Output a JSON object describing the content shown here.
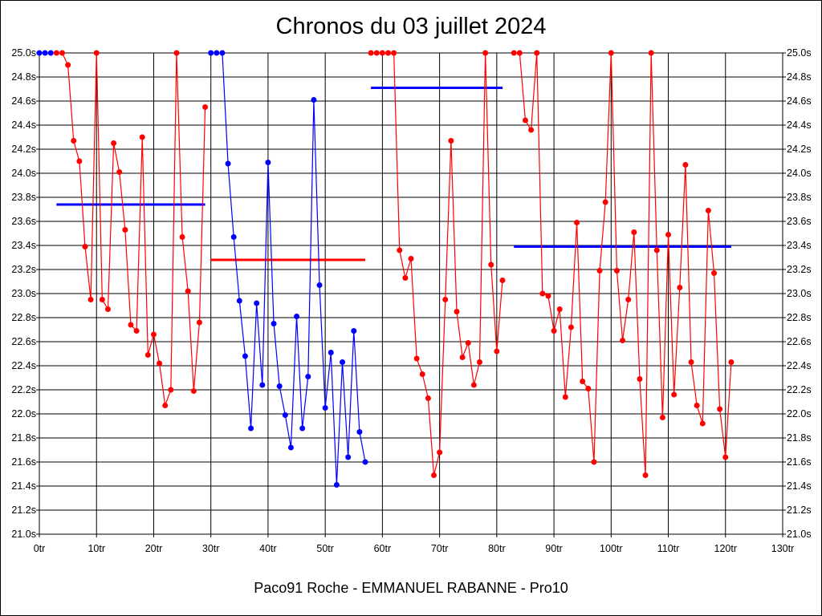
{
  "chart_data": {
    "type": "line",
    "title": "Chronos du 03 juillet 2024",
    "subtitle": "Paco91 Roche - EMMANUEL RABANNE - Pro10",
    "xlabel": "",
    "ylabel": "",
    "xlim": [
      0,
      130
    ],
    "ylim": [
      21.0,
      25.0
    ],
    "grid": true,
    "x_ticks": [
      "0tr",
      "10tr",
      "20tr",
      "30tr",
      "40tr",
      "50tr",
      "60tr",
      "70tr",
      "80tr",
      "90tr",
      "100tr",
      "110tr",
      "120tr",
      "130tr"
    ],
    "y_ticks": [
      "21.0s",
      "21.2s",
      "21.4s",
      "21.6s",
      "21.8s",
      "22.0s",
      "22.2s",
      "22.4s",
      "22.6s",
      "22.8s",
      "23.0s",
      "23.2s",
      "23.4s",
      "23.6s",
      "23.8s",
      "24.0s",
      "24.2s",
      "24.4s",
      "24.6s",
      "24.8s",
      "25.0s"
    ],
    "series": [
      {
        "name": "stint-0",
        "color": "#0000ff",
        "x": [
          0,
          1,
          2
        ],
        "y": [
          25.0,
          25.0,
          25.0
        ]
      },
      {
        "name": "stint-1",
        "color": "#ff0000",
        "x": [
          3,
          4,
          5,
          6,
          7,
          8,
          9,
          10,
          11,
          12,
          13,
          14,
          15,
          16,
          17,
          18,
          19,
          20,
          21,
          22,
          23,
          24,
          25,
          26,
          27,
          28,
          29
        ],
        "y": [
          25.0,
          25.0,
          24.9,
          24.27,
          24.1,
          23.39,
          22.95,
          25.0,
          22.95,
          22.87,
          24.25,
          24.01,
          23.53,
          22.74,
          22.69,
          24.3,
          22.49,
          22.66,
          22.42,
          22.07,
          22.2,
          25.0,
          23.47,
          23.02,
          22.19,
          22.76,
          24.55
        ]
      },
      {
        "name": "stint-2",
        "color": "#0000ff",
        "x": [
          30,
          31,
          32,
          33,
          34,
          35,
          36,
          37,
          38,
          39,
          40,
          41,
          42,
          43,
          44,
          45,
          46,
          47,
          48,
          49,
          50,
          51,
          52,
          53,
          54,
          55,
          56,
          57
        ],
        "y": [
          25.0,
          25.0,
          25.0,
          24.08,
          23.47,
          22.94,
          22.48,
          21.88,
          22.92,
          22.24,
          24.09,
          22.75,
          22.23,
          21.99,
          21.72,
          22.81,
          21.88,
          22.31,
          24.61,
          23.07,
          22.05,
          22.51,
          21.41,
          22.43,
          21.64,
          22.69,
          21.85,
          21.6
        ]
      },
      {
        "name": "stint-3",
        "color": "#ff0000",
        "x": [
          58,
          59,
          60,
          61,
          62,
          63,
          64,
          65,
          66,
          67,
          68,
          69,
          70,
          71,
          72,
          73,
          74,
          75,
          76,
          77,
          78,
          79,
          80,
          81
        ],
        "y": [
          25.0,
          25.0,
          25.0,
          25.0,
          25.0,
          23.36,
          23.13,
          23.29,
          22.46,
          22.33,
          22.13,
          21.49,
          21.68,
          22.95,
          24.27,
          22.85,
          22.47,
          22.59,
          22.24,
          22.43,
          25.0,
          23.24,
          22.52,
          23.11
        ]
      },
      {
        "name": "stint-4",
        "color": "#ff0000",
        "x": [
          83,
          84,
          85,
          86,
          87,
          88,
          89,
          90,
          91,
          92,
          93,
          94,
          95,
          96,
          97,
          98,
          99,
          100,
          101,
          102,
          103,
          104,
          105,
          106,
          107,
          108,
          109,
          110,
          111,
          112,
          113,
          114,
          115,
          116,
          117,
          118,
          119,
          120,
          121
        ],
        "y": [
          25.0,
          25.0,
          24.44,
          24.36,
          25.0,
          23.0,
          22.98,
          22.69,
          22.87,
          22.14,
          22.72,
          23.59,
          22.27,
          22.21,
          21.6,
          23.19,
          23.76,
          25.0,
          23.19,
          22.61,
          22.95,
          23.51,
          22.29,
          21.49,
          25.0,
          23.36,
          21.97,
          23.49,
          22.16,
          23.05,
          24.07,
          22.43,
          22.07,
          21.92,
          23.69,
          23.17,
          22.04,
          21.64,
          22.43
        ]
      }
    ],
    "averages": [
      {
        "color": "#0000ff",
        "x": [
          3,
          29
        ],
        "y": 23.74
      },
      {
        "color": "#ff0000",
        "x": [
          30,
          57
        ],
        "y": 23.28
      },
      {
        "color": "#0000ff",
        "x": [
          58,
          81
        ],
        "y": 24.71
      },
      {
        "color": "#0000ff",
        "x": [
          83,
          121
        ],
        "y": 23.39
      }
    ]
  }
}
